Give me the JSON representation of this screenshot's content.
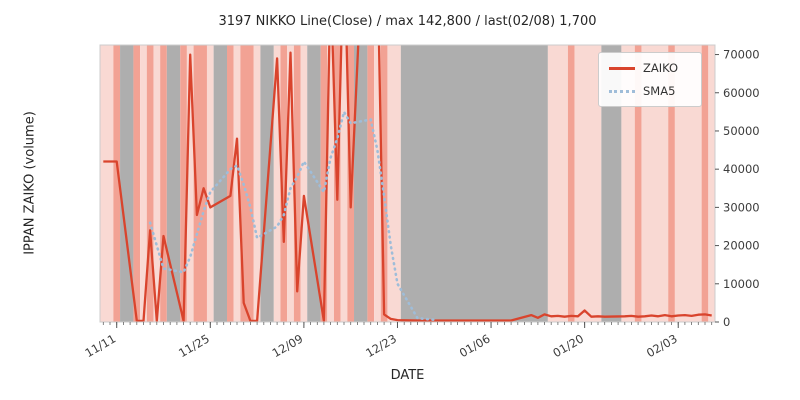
{
  "chart_data": {
    "type": "line",
    "title": "3197 NIKKO Line(Close) / max 142,800 / last(02/08) 1,700",
    "xlabel": "DATE",
    "ylabel": "IPPAN ZAIKO (volume)",
    "ylim": [
      0,
      72500
    ],
    "y_ticks": [
      0,
      10000,
      20000,
      30000,
      40000,
      50000,
      60000,
      70000
    ],
    "x_tick_labels": [
      "11/11",
      "11/25",
      "12/09",
      "12/23",
      "01/06",
      "01/20",
      "02/03"
    ],
    "x_tick_days": [
      2,
      16,
      30,
      44,
      58,
      72,
      86
    ],
    "days_total": 92,
    "grid": false,
    "legend_position": "upper right",
    "series": [
      {
        "name": "ZAIKO",
        "style": "solid",
        "color": "#d9442d",
        "points": [
          [
            0,
            42000
          ],
          [
            1,
            42000
          ],
          [
            2,
            42000
          ],
          [
            5,
            300
          ],
          [
            6,
            300
          ],
          [
            7,
            24000
          ],
          [
            8,
            300
          ],
          [
            9,
            22500
          ],
          [
            12,
            300
          ],
          [
            13,
            70000
          ],
          [
            14,
            28000
          ],
          [
            15,
            35000
          ],
          [
            16,
            30000
          ],
          [
            19,
            33000
          ],
          [
            20,
            48000
          ],
          [
            21,
            5000
          ],
          [
            22,
            300
          ],
          [
            23,
            300
          ],
          [
            26,
            69000
          ],
          [
            27,
            21000
          ],
          [
            28,
            70500
          ],
          [
            29,
            8000
          ],
          [
            30,
            33000
          ],
          [
            33,
            300
          ],
          [
            34,
            90000
          ],
          [
            35,
            32000
          ],
          [
            36,
            100000
          ],
          [
            37,
            30000
          ],
          [
            40,
            142800
          ],
          [
            41,
            95000
          ],
          [
            42,
            2000
          ],
          [
            43,
            800
          ],
          [
            44,
            500
          ],
          [
            47,
            400
          ],
          [
            50,
            400
          ],
          [
            54,
            400
          ],
          [
            58,
            400
          ],
          [
            61,
            400
          ],
          [
            64,
            1800
          ],
          [
            65,
            1100
          ],
          [
            66,
            2000
          ],
          [
            67,
            1500
          ],
          [
            68,
            1600
          ],
          [
            69,
            1400
          ],
          [
            70,
            1600
          ],
          [
            71,
            1500
          ],
          [
            72,
            3000
          ],
          [
            73,
            1400
          ],
          [
            74,
            1500
          ],
          [
            75,
            1400
          ],
          [
            78,
            1500
          ],
          [
            79,
            1600
          ],
          [
            80,
            1400
          ],
          [
            81,
            1500
          ],
          [
            82,
            1700
          ],
          [
            83,
            1500
          ],
          [
            84,
            1800
          ],
          [
            85,
            1500
          ],
          [
            86,
            1700
          ],
          [
            87,
            1800
          ],
          [
            88,
            1600
          ],
          [
            89,
            1900
          ],
          [
            90,
            2000
          ],
          [
            91,
            1700
          ]
        ]
      },
      {
        "name": "SMA5",
        "style": "dotted",
        "color": "#9fbdd9",
        "points": [
          [
            7,
            26000
          ],
          [
            8,
            20000
          ],
          [
            9,
            14000
          ],
          [
            12,
            13000
          ],
          [
            13,
            17000
          ],
          [
            14,
            23000
          ],
          [
            15,
            29000
          ],
          [
            16,
            34000
          ],
          [
            19,
            40000
          ],
          [
            20,
            41000
          ],
          [
            21,
            36000
          ],
          [
            22,
            30000
          ],
          [
            23,
            22000
          ],
          [
            26,
            25000
          ],
          [
            27,
            28000
          ],
          [
            28,
            35000
          ],
          [
            29,
            38000
          ],
          [
            30,
            42000
          ],
          [
            33,
            34000
          ],
          [
            34,
            43000
          ],
          [
            35,
            48000
          ],
          [
            36,
            55000
          ],
          [
            37,
            52000
          ],
          [
            40,
            53000
          ],
          [
            41,
            45000
          ],
          [
            42,
            33000
          ],
          [
            43,
            20000
          ],
          [
            44,
            10000
          ],
          [
            47,
            1000
          ],
          [
            50,
            500
          ]
        ]
      }
    ],
    "background_bands": {
      "colors": {
        "pink": "#f9d9d3",
        "salmon": "#f2a294",
        "gray": "#aeaeae"
      },
      "segments": [
        [
          0,
          2,
          "pink"
        ],
        [
          2,
          3,
          "salmon"
        ],
        [
          3,
          5,
          "gray"
        ],
        [
          5,
          6,
          "salmon"
        ],
        [
          6,
          7,
          "pink"
        ],
        [
          7,
          8,
          "salmon"
        ],
        [
          8,
          9,
          "pink"
        ],
        [
          9,
          10,
          "salmon"
        ],
        [
          10,
          12,
          "gray"
        ],
        [
          12,
          13,
          "salmon"
        ],
        [
          13,
          14,
          "pink"
        ],
        [
          14,
          16,
          "salmon"
        ],
        [
          16,
          17,
          "pink"
        ],
        [
          17,
          19,
          "gray"
        ],
        [
          19,
          20,
          "salmon"
        ],
        [
          20,
          21,
          "pink"
        ],
        [
          21,
          23,
          "salmon"
        ],
        [
          23,
          24,
          "pink"
        ],
        [
          24,
          26,
          "gray"
        ],
        [
          26,
          27,
          "pink"
        ],
        [
          27,
          28,
          "salmon"
        ],
        [
          28,
          29,
          "pink"
        ],
        [
          29,
          30,
          "salmon"
        ],
        [
          30,
          31,
          "pink"
        ],
        [
          31,
          33,
          "gray"
        ],
        [
          33,
          34,
          "salmon"
        ],
        [
          34,
          35,
          "pink"
        ],
        [
          35,
          36,
          "salmon"
        ],
        [
          36,
          37,
          "pink"
        ],
        [
          37,
          38,
          "salmon"
        ],
        [
          38,
          40,
          "gray"
        ],
        [
          40,
          41,
          "salmon"
        ],
        [
          41,
          42,
          "pink"
        ],
        [
          42,
          43,
          "salmon"
        ],
        [
          43,
          45,
          "pink"
        ],
        [
          45,
          67,
          "gray"
        ],
        [
          67,
          70,
          "pink"
        ],
        [
          70,
          71,
          "salmon"
        ],
        [
          71,
          75,
          "pink"
        ],
        [
          75,
          78,
          "gray"
        ],
        [
          78,
          80,
          "pink"
        ],
        [
          80,
          81,
          "salmon"
        ],
        [
          81,
          85,
          "pink"
        ],
        [
          85,
          86,
          "salmon"
        ],
        [
          86,
          90,
          "pink"
        ],
        [
          90,
          91,
          "salmon"
        ],
        [
          91,
          92,
          "pink"
        ]
      ]
    },
    "annotations": {
      "max_value": "142,800",
      "last_date": "02/08",
      "last_value": "1,700",
      "ticker": "3197 NIKKO"
    }
  }
}
